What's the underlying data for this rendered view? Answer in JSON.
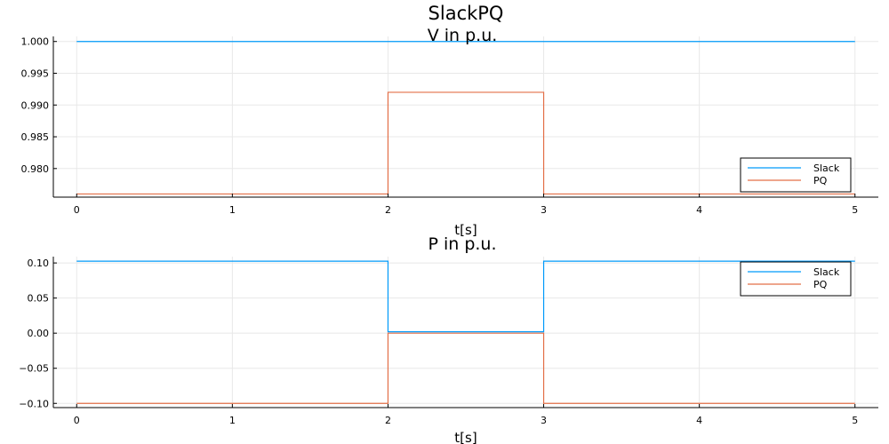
{
  "figure": {
    "title": "SlackPQ"
  },
  "chart_data": [
    {
      "type": "line",
      "step": "post",
      "title": "V in p.u.",
      "xlabel": "t[s]",
      "ylabel": "",
      "xlim": [
        -0.15,
        5.15
      ],
      "ylim": [
        0.9755,
        1.0008
      ],
      "xticks": [
        0,
        1,
        2,
        3,
        4,
        5
      ],
      "xtick_labels": [
        "0",
        "1",
        "2",
        "3",
        "4",
        "5"
      ],
      "yticks": [
        0.98,
        0.985,
        0.99,
        0.995,
        1.0
      ],
      "ytick_labels": [
        "0.980",
        "0.985",
        "0.990",
        "0.995",
        "1.000"
      ],
      "grid": true,
      "legend": "bottom-right",
      "series": [
        {
          "name": "Slack",
          "color": "#009AFA",
          "x": [
            0,
            2,
            3,
            5
          ],
          "y": [
            1.0,
            1.0,
            1.0,
            1.0
          ]
        },
        {
          "name": "PQ",
          "color": "#E36F47",
          "x": [
            0,
            2,
            3,
            5
          ],
          "y": [
            0.976,
            0.992,
            0.976,
            0.976
          ]
        }
      ]
    },
    {
      "type": "line",
      "step": "post",
      "title": "P in p.u.",
      "xlabel": "t[s]",
      "ylabel": "",
      "xlim": [
        -0.15,
        5.15
      ],
      "ylim": [
        -0.106,
        0.109
      ],
      "xticks": [
        0,
        1,
        2,
        3,
        4,
        5
      ],
      "xtick_labels": [
        "0",
        "1",
        "2",
        "3",
        "4",
        "5"
      ],
      "yticks": [
        -0.1,
        -0.05,
        0.0,
        0.05,
        0.1
      ],
      "ytick_labels": [
        "−0.10",
        "−0.05",
        "0.00",
        "0.05",
        "0.10"
      ],
      "grid": true,
      "legend": "top-right",
      "series": [
        {
          "name": "Slack",
          "color": "#009AFA",
          "x": [
            0,
            2,
            3,
            5
          ],
          "y": [
            0.1025,
            0.002,
            0.1025,
            0.1025
          ]
        },
        {
          "name": "PQ",
          "color": "#E36F47",
          "x": [
            0,
            2,
            3,
            5
          ],
          "y": [
            -0.1,
            0.0,
            -0.1,
            -0.1
          ]
        }
      ]
    }
  ]
}
